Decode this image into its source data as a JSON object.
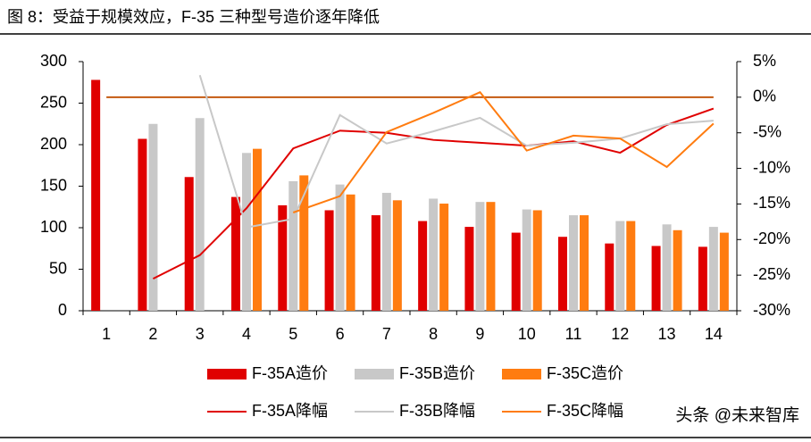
{
  "chart_data": {
    "type": "bar",
    "title": "图 8：受益于规模效应，F-35 三种型号造价逐年降低",
    "watermark": "头条 @未来智库",
    "categories": [
      "1",
      "2",
      "3",
      "4",
      "5",
      "6",
      "7",
      "8",
      "9",
      "10",
      "11",
      "12",
      "13",
      "14"
    ],
    "ylim": [
      0,
      300
    ],
    "yticks": [
      0,
      50,
      100,
      150,
      200,
      250,
      300
    ],
    "y2lim": [
      -30,
      5
    ],
    "y2ticks": [
      {
        "value": 5,
        "label": "5%"
      },
      {
        "value": 0,
        "label": "0%"
      },
      {
        "value": -5,
        "label": "-5%"
      },
      {
        "value": -10,
        "label": "-10%"
      },
      {
        "value": -15,
        "label": "-15%"
      },
      {
        "value": -20,
        "label": "-20%"
      },
      {
        "value": -25,
        "label": "-25%"
      },
      {
        "value": -30,
        "label": "-30%"
      }
    ],
    "reference_line": {
      "axis": "y2",
      "value": 0,
      "color": "#c55a11"
    },
    "series": [
      {
        "name": "F-35A造价",
        "type": "bar",
        "color": "#e00000",
        "values": [
          278,
          207,
          161,
          137,
          127,
          121,
          115,
          108,
          101,
          94,
          89,
          81,
          78,
          77
        ]
      },
      {
        "name": "F-35B造价",
        "type": "bar",
        "color": "#c8c8c8",
        "values": [
          null,
          225,
          232,
          190,
          156,
          152,
          142,
          135,
          131,
          122,
          115,
          108,
          104,
          101
        ]
      },
      {
        "name": "F-35C造价",
        "type": "bar",
        "color": "#ff7c10",
        "values": [
          null,
          null,
          null,
          195,
          163,
          140,
          133,
          129,
          131,
          121,
          115,
          108,
          97,
          94
        ]
      },
      {
        "name": "F-35A降幅",
        "type": "line",
        "axis": "y2",
        "color": "#e00000",
        "values": [
          null,
          -25.5,
          -22.2,
          -15.6,
          -7.2,
          -4.7,
          -5.0,
          -6.0,
          -6.4,
          -6.8,
          -6.2,
          -7.8,
          -3.9,
          -1.6
        ]
      },
      {
        "name": "F-35B降幅",
        "type": "line",
        "axis": "y2",
        "color": "#c8c8c8",
        "values": [
          null,
          null,
          3.1,
          -18.3,
          -17.1,
          -2.5,
          -6.5,
          -4.8,
          -2.9,
          -6.8,
          -6.4,
          -5.8,
          -3.8,
          -3.3
        ]
      },
      {
        "name": "F-35C降幅",
        "type": "line",
        "axis": "y2",
        "color": "#ff7c10",
        "values": [
          null,
          null,
          null,
          null,
          -16.2,
          -13.9,
          -4.9,
          -2.2,
          0.7,
          -7.5,
          -5.4,
          -5.8,
          -9.8,
          -3.7
        ]
      }
    ]
  }
}
